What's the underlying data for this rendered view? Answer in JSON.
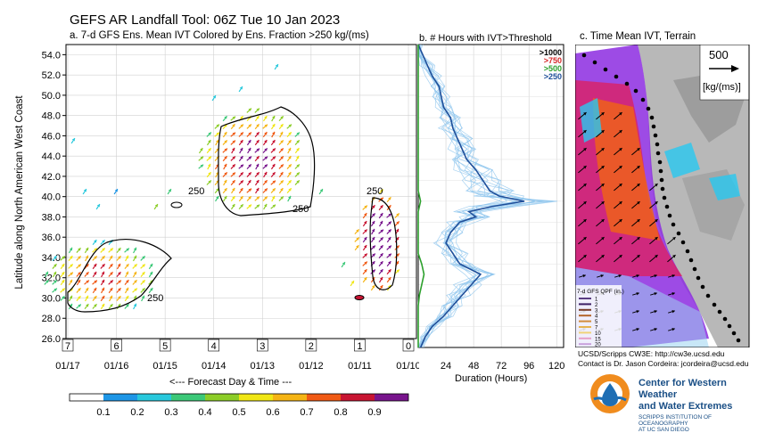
{
  "header": {
    "title": "GEFS AR Landfall Tool: 06Z Tue 10 Jan 2023",
    "panel_a_title": "a. 7-d GFS Ens. Mean IVT Colored by Ens. Fraction >250 kg/(ms)",
    "panel_b_title": "b. # Hours with IVT>Threshold",
    "panel_c_title": "c. Time Mean IVT, Terrain"
  },
  "panel_a": {
    "ylabel": "Latitude along North American West Coast",
    "xlabel": "<--- Forecast Day & Time ---",
    "forecast_days": [
      "7",
      "6",
      "5",
      "4",
      "3",
      "2",
      "1",
      "0"
    ],
    "contour_labels": [
      "250",
      "250",
      "250",
      "250"
    ]
  },
  "chart_data": [
    {
      "type": "heatmap",
      "title": "a. 7-d GFS Ens. Mean IVT Colored by Ens. Fraction >250 kg/(ms)",
      "x_ticks": [
        "01/17",
        "01/16",
        "01/15",
        "01/14",
        "01/13",
        "01/12",
        "01/11",
        "01/10"
      ],
      "y_ticks": [
        "26.0",
        "28.0",
        "30.0",
        "32.0",
        "34.0",
        "36.0",
        "38.0",
        "40.0",
        "42.0",
        "44.0",
        "46.0",
        "48.0",
        "50.0",
        "52.0",
        "54.0"
      ],
      "ylim": [
        26,
        55
      ],
      "ylabel": "Latitude along North American West Coast",
      "xlabel": "<--- Forecast Day & Time ---",
      "colorbar": {
        "ticks": [
          "0.1",
          "0.2",
          "0.3",
          "0.4",
          "0.5",
          "0.6",
          "0.7",
          "0.8",
          "0.9"
        ],
        "colors": [
          "#ffffff",
          "#1e96e6",
          "#28c8dc",
          "#3cc878",
          "#8ccd28",
          "#f0e614",
          "#f5b414",
          "#f05a14",
          "#c81432",
          "#78148c"
        ]
      },
      "regions": [
        {
          "day": 6.3,
          "lat_min": 28.5,
          "lat_max": 35.5,
          "fraction": 0.6
        },
        {
          "day": 3.2,
          "lat_min": 38.5,
          "lat_max": 48.5,
          "fraction": 0.7
        },
        {
          "day": 0.6,
          "lat_min": 30.5,
          "lat_max": 40.5,
          "fraction": 0.9
        }
      ]
    },
    {
      "type": "line",
      "title": "b. # Hours with IVT>Threshold",
      "xlabel": "Duration (Hours)",
      "x_ticks": [
        "24",
        "48",
        "72",
        "96",
        "120"
      ],
      "xlim": [
        0,
        126
      ],
      "ylim": [
        26,
        55
      ],
      "legend": [
        "1000",
        "750",
        "500",
        "250"
      ],
      "legend_prefix": ">",
      "series": [
        {
          "name": ">250",
          "color": "#1f4f9a",
          "lat": [
            55,
            54,
            53,
            52,
            51,
            50,
            49,
            48,
            47,
            46,
            45,
            44,
            43,
            42,
            41,
            40.5,
            40,
            39.5,
            39,
            38.5,
            38,
            37,
            36,
            35,
            34,
            33,
            32,
            31,
            30,
            29,
            28,
            27,
            26
          ],
          "hours": [
            0,
            4,
            8,
            12,
            18,
            20,
            22,
            28,
            30,
            34,
            38,
            42,
            50,
            56,
            62,
            70,
            92,
            64,
            44,
            50,
            36,
            28,
            24,
            30,
            36,
            54,
            46,
            38,
            30,
            22,
            12,
            6,
            2
          ]
        },
        {
          "name": ">500",
          "color": "#2ca02c",
          "lat": [
            55,
            50,
            45,
            41,
            40,
            39,
            35,
            34,
            33,
            32,
            31,
            30,
            26
          ],
          "hours": [
            0,
            0,
            0,
            0,
            2,
            0,
            0,
            3,
            5,
            3,
            1,
            0,
            0
          ]
        }
      ]
    }
  ],
  "panel_c": {
    "scale_value": "500",
    "scale_unit": "[kg/(ms)]",
    "qpf_title": "7-d GFS QPF (in.)",
    "qpf_levels": [
      "1",
      "2",
      "3",
      "4",
      "5",
      "7",
      "10",
      "15",
      "20"
    ],
    "qpf_colors": [
      "#5a3c82",
      "#3c1e64",
      "#783c28",
      "#b46428",
      "#d28c3c",
      "#e6b450",
      "#f0d278",
      "#e6a0c8",
      "#c8a0dc"
    ]
  },
  "credits": {
    "line1": "UCSD/Scripps CW3E: http://cw3e.ucsd.edu",
    "line2": "Contact is Dr. Jason Cordeira: jcordeira@ucsd.edu"
  },
  "logo": {
    "name_line1": "Center for Western Weather",
    "name_line2": "and Water Extremes",
    "tag_line1": "SCRIPPS INSTITUTION OF OCEANOGRAPHY",
    "tag_line2": "AT UC SAN DIEGO"
  }
}
